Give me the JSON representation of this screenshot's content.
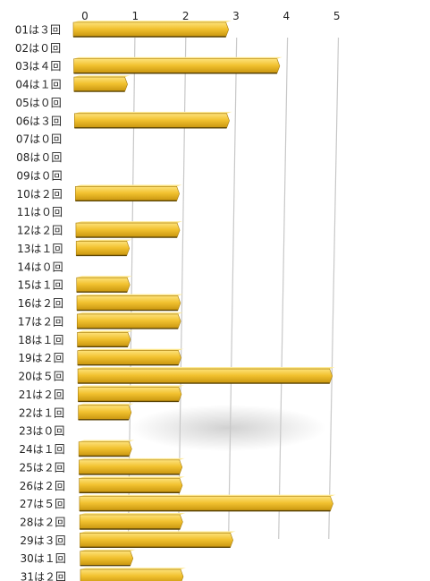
{
  "chart_data": {
    "type": "bar",
    "orientation": "horizontal",
    "categories": [
      "01は３回",
      "02は０回",
      "03は４回",
      "04は１回",
      "05は０回",
      "06は３回",
      "07は０回",
      "08は０回",
      "09は０回",
      "10は２回",
      "11は０回",
      "12は２回",
      "13は１回",
      "14は０回",
      "15は１回",
      "16は２回",
      "17は２回",
      "18は１回",
      "19は２回",
      "20は５回",
      "21は２回",
      "22は１回",
      "23は０回",
      "24は１回",
      "25は２回",
      "26は２回",
      "27は５回",
      "28は２回",
      "29は３回",
      "30は１回",
      "31は２回"
    ],
    "values": [
      3,
      0,
      4,
      1,
      0,
      3,
      0,
      0,
      0,
      2,
      0,
      2,
      1,
      0,
      1,
      2,
      2,
      1,
      2,
      5,
      2,
      1,
      0,
      1,
      2,
      2,
      5,
      2,
      3,
      1,
      2
    ],
    "xticks": [
      "0",
      "1",
      "2",
      "3",
      "4",
      "5"
    ],
    "xlim": [
      0,
      5
    ],
    "grid": true,
    "bar_color": "#f2c230"
  }
}
